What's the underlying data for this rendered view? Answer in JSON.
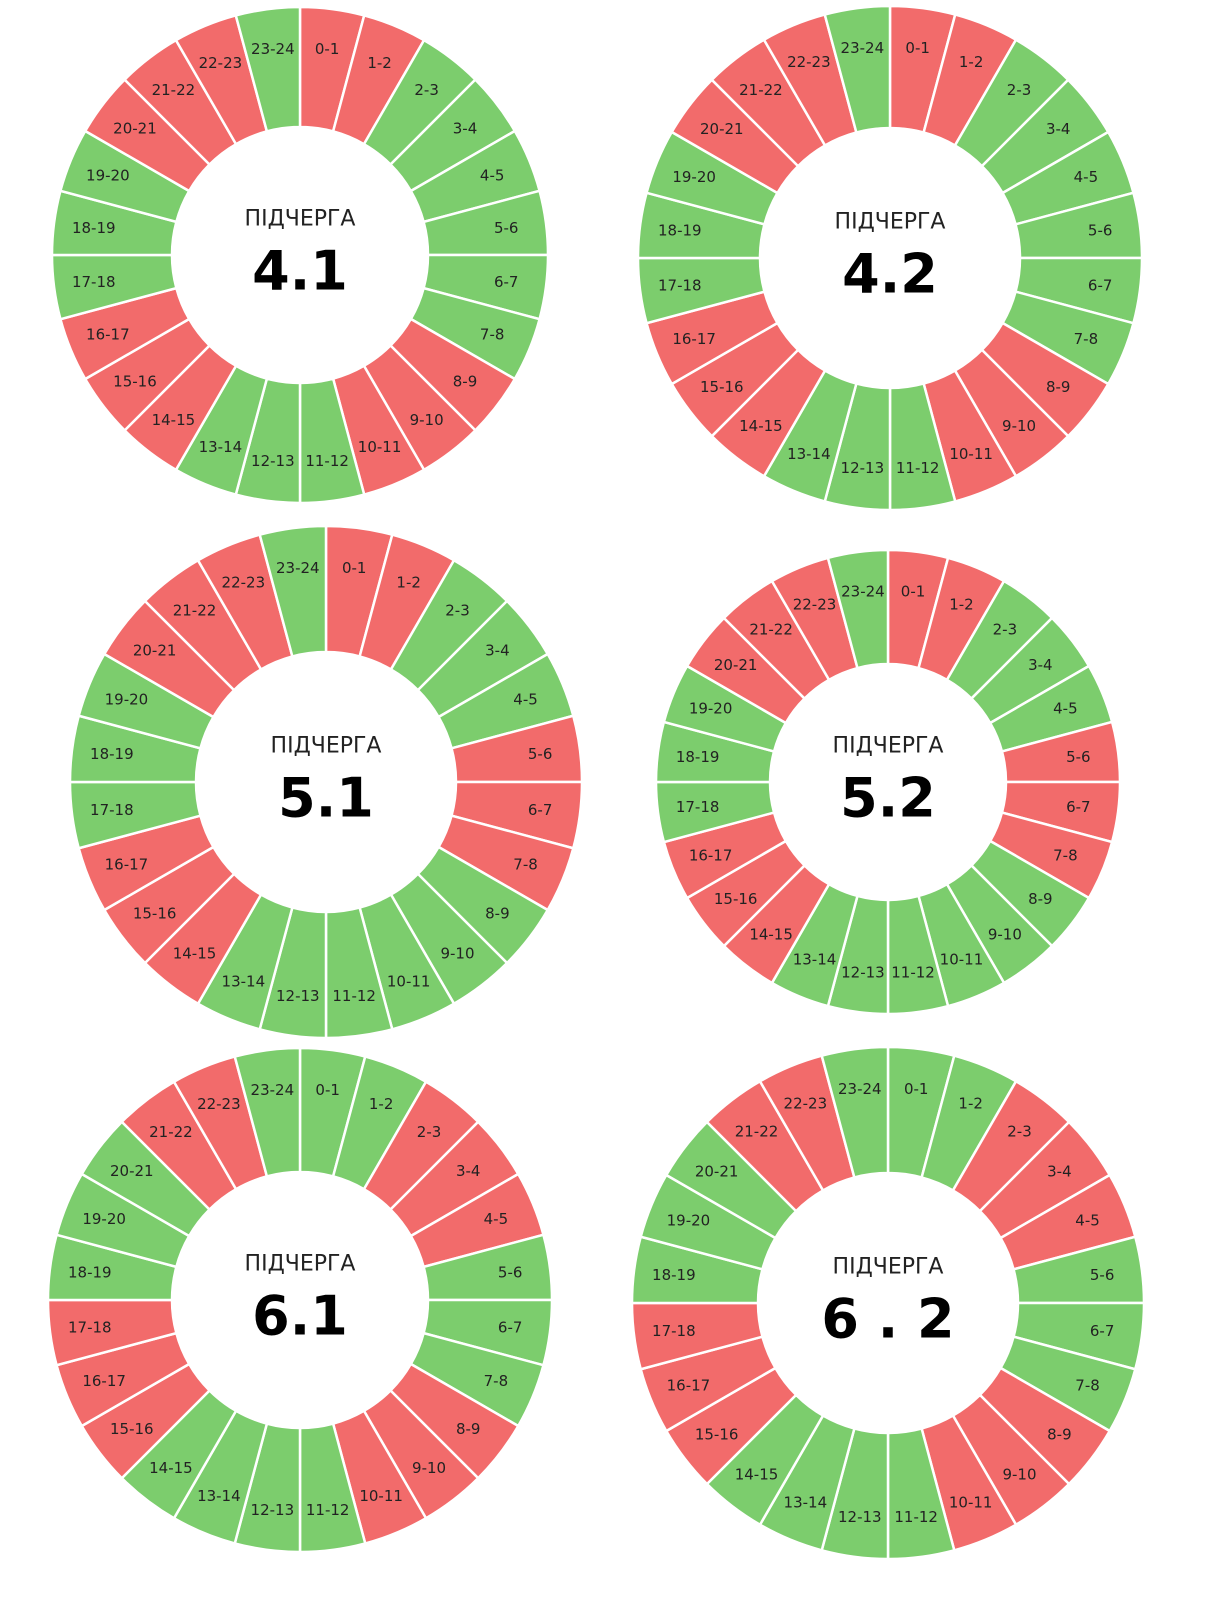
{
  "colors": {
    "off": "#f26b6b",
    "on": "#7ccd6d",
    "divider": "#ffffff"
  },
  "center_title": "ПІДЧЕРГА",
  "chart_data": [
    {
      "type": "pie",
      "number": "4.1",
      "hours": [
        "0-1",
        "1-2",
        "2-3",
        "3-4",
        "4-5",
        "5-6",
        "6-7",
        "7-8",
        "8-9",
        "9-10",
        "10-11",
        "11-12",
        "12-13",
        "13-14",
        "14-15",
        "15-16",
        "16-17",
        "17-18",
        "18-19",
        "19-20",
        "20-21",
        "21-22",
        "22-23",
        "23-24"
      ],
      "status": [
        "off",
        "off",
        "on",
        "on",
        "on",
        "on",
        "on",
        "on",
        "off",
        "off",
        "off",
        "on",
        "on",
        "on",
        "off",
        "off",
        "off",
        "on",
        "on",
        "on",
        "off",
        "off",
        "off",
        "on"
      ]
    },
    {
      "type": "pie",
      "number": "4.2",
      "hours": [
        "0-1",
        "1-2",
        "2-3",
        "3-4",
        "4-5",
        "5-6",
        "6-7",
        "7-8",
        "8-9",
        "9-10",
        "10-11",
        "11-12",
        "12-13",
        "13-14",
        "14-15",
        "15-16",
        "16-17",
        "17-18",
        "18-19",
        "19-20",
        "20-21",
        "21-22",
        "22-23",
        "23-24"
      ],
      "status": [
        "off",
        "off",
        "on",
        "on",
        "on",
        "on",
        "on",
        "on",
        "off",
        "off",
        "off",
        "on",
        "on",
        "on",
        "off",
        "off",
        "off",
        "on",
        "on",
        "on",
        "off",
        "off",
        "off",
        "on"
      ]
    },
    {
      "type": "pie",
      "number": "5.1",
      "hours": [
        "0-1",
        "1-2",
        "2-3",
        "3-4",
        "4-5",
        "5-6",
        "6-7",
        "7-8",
        "8-9",
        "9-10",
        "10-11",
        "11-12",
        "12-13",
        "13-14",
        "14-15",
        "15-16",
        "16-17",
        "17-18",
        "18-19",
        "19-20",
        "20-21",
        "21-22",
        "22-23",
        "23-24"
      ],
      "status": [
        "off",
        "off",
        "on",
        "on",
        "on",
        "off",
        "off",
        "off",
        "on",
        "on",
        "on",
        "on",
        "on",
        "on",
        "off",
        "off",
        "off",
        "on",
        "on",
        "on",
        "off",
        "off",
        "off",
        "on"
      ]
    },
    {
      "type": "pie",
      "number": "5.2",
      "hours": [
        "0-1",
        "1-2",
        "2-3",
        "3-4",
        "4-5",
        "5-6",
        "6-7",
        "7-8",
        "8-9",
        "9-10",
        "10-11",
        "11-12",
        "12-13",
        "13-14",
        "14-15",
        "15-16",
        "16-17",
        "17-18",
        "18-19",
        "19-20",
        "20-21",
        "21-22",
        "22-23",
        "23-24"
      ],
      "status": [
        "off",
        "off",
        "on",
        "on",
        "on",
        "off",
        "off",
        "off",
        "on",
        "on",
        "on",
        "on",
        "on",
        "on",
        "off",
        "off",
        "off",
        "on",
        "on",
        "on",
        "off",
        "off",
        "off",
        "on"
      ]
    },
    {
      "type": "pie",
      "number": "6.1",
      "hours": [
        "0-1",
        "1-2",
        "2-3",
        "3-4",
        "4-5",
        "5-6",
        "6-7",
        "7-8",
        "8-9",
        "9-10",
        "10-11",
        "11-12",
        "12-13",
        "13-14",
        "14-15",
        "15-16",
        "16-17",
        "17-18",
        "18-19",
        "19-20",
        "20-21",
        "21-22",
        "22-23",
        "23-24"
      ],
      "status": [
        "on",
        "on",
        "off",
        "off",
        "off",
        "on",
        "on",
        "on",
        "off",
        "off",
        "off",
        "on",
        "on",
        "on",
        "on",
        "off",
        "off",
        "off",
        "on",
        "on",
        "on",
        "off",
        "off",
        "on"
      ]
    },
    {
      "type": "pie",
      "number": "6 . 2",
      "hours": [
        "0-1",
        "1-2",
        "2-3",
        "3-4",
        "4-5",
        "5-6",
        "6-7",
        "7-8",
        "8-9",
        "9-10",
        "10-11",
        "11-12",
        "12-13",
        "13-14",
        "14-15",
        "15-16",
        "16-17",
        "17-18",
        "18-19",
        "19-20",
        "20-21",
        "21-22",
        "22-23",
        "23-24"
      ],
      "status": [
        "on",
        "on",
        "off",
        "off",
        "off",
        "on",
        "on",
        "on",
        "off",
        "off",
        "off",
        "on",
        "on",
        "on",
        "on",
        "off",
        "off",
        "off",
        "on",
        "on",
        "on",
        "off",
        "off",
        "on"
      ]
    }
  ]
}
